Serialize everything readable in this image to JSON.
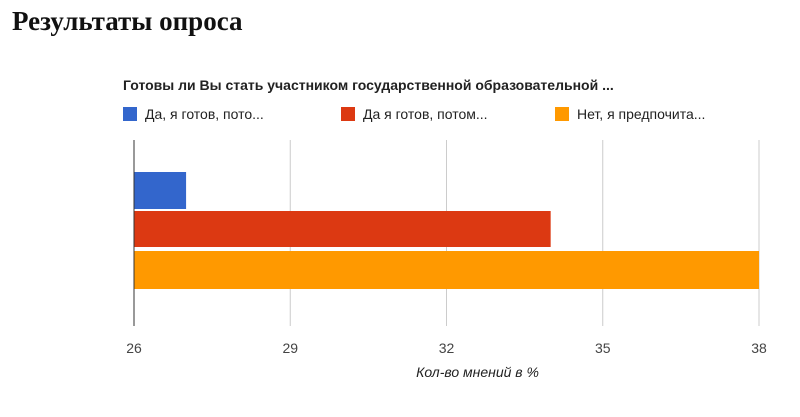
{
  "page_title": "Результаты опроса",
  "chart_data": {
    "type": "bar",
    "orientation": "horizontal",
    "title": "Готовы ли Вы стать участником государственной образовательной ...",
    "xlabel": "Кол-во мнений в %",
    "ylabel": "",
    "xlim": [
      26,
      38
    ],
    "ticks": [
      "26",
      "29",
      "32",
      "35",
      "38"
    ],
    "grid": true,
    "legend_position": "top",
    "series": [
      {
        "name": "Да, я готов, пото...",
        "value": 27,
        "color": "#3366cc"
      },
      {
        "name": "Да я готов, потом...",
        "value": 34,
        "color": "#dc3912"
      },
      {
        "name": "Нет, я предпочита...",
        "value": 38,
        "color": "#ff9900"
      }
    ]
  }
}
